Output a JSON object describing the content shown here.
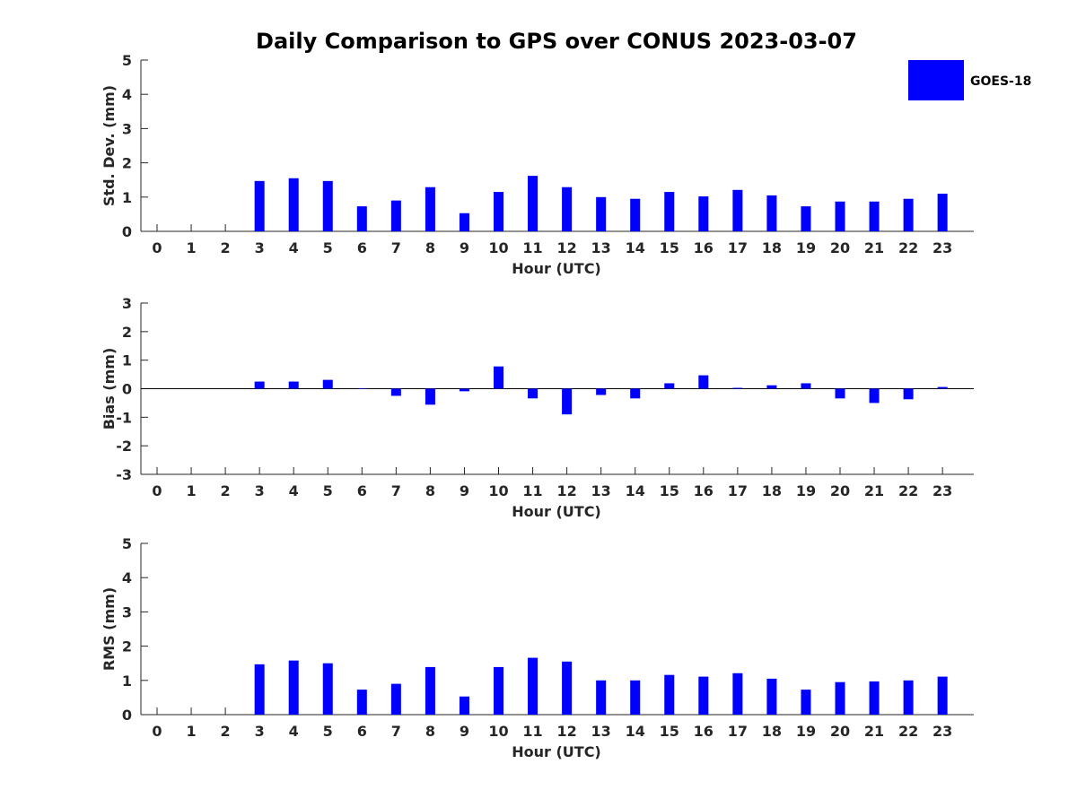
{
  "title": "Daily Comparison to GPS over CONUS 2023-03-07",
  "legend": {
    "label": "GOES-18",
    "color": "#0000ff"
  },
  "chart_data": [
    {
      "type": "bar",
      "ylabel": "Std. Dev. (mm)",
      "xlabel": "Hour (UTC)",
      "ylim": [
        0,
        5
      ],
      "yticks": [
        "0",
        "1",
        "2",
        "3",
        "4",
        "5"
      ],
      "categories": [
        "0",
        "1",
        "2",
        "3",
        "4",
        "5",
        "6",
        "7",
        "8",
        "9",
        "10",
        "11",
        "12",
        "13",
        "14",
        "15",
        "16",
        "17",
        "18",
        "19",
        "20",
        "21",
        "22",
        "23"
      ],
      "series": [
        {
          "name": "GOES-18",
          "color": "#0000ff",
          "values": [
            null,
            null,
            null,
            1.47,
            1.55,
            1.47,
            0.73,
            0.9,
            1.29,
            0.53,
            1.15,
            1.62,
            1.29,
            1.0,
            0.95,
            1.15,
            1.02,
            1.21,
            1.05,
            0.73,
            0.87,
            0.87,
            0.95,
            1.1
          ]
        }
      ],
      "legend": "top-right"
    },
    {
      "type": "bar",
      "ylabel": "Bias (mm)",
      "xlabel": "Hour (UTC)",
      "ylim": [
        -3,
        3
      ],
      "yticks": [
        "-3",
        "-2",
        "-1",
        "0",
        "1",
        "2",
        "3"
      ],
      "categories": [
        "0",
        "1",
        "2",
        "3",
        "4",
        "5",
        "6",
        "7",
        "8",
        "9",
        "10",
        "11",
        "12",
        "13",
        "14",
        "15",
        "16",
        "17",
        "18",
        "19",
        "20",
        "21",
        "22",
        "23"
      ],
      "series": [
        {
          "name": "GOES-18",
          "color": "#0000ff",
          "values": [
            null,
            null,
            null,
            0.25,
            0.25,
            0.31,
            0.0,
            -0.25,
            -0.56,
            -0.09,
            0.78,
            -0.34,
            -0.9,
            -0.22,
            -0.34,
            0.19,
            0.47,
            0.03,
            0.12,
            0.19,
            -0.34,
            -0.5,
            -0.37,
            0.06
          ]
        }
      ]
    },
    {
      "type": "bar",
      "ylabel": "RMS (mm)",
      "xlabel": "Hour (UTC)",
      "ylim": [
        0,
        5
      ],
      "yticks": [
        "0",
        "1",
        "2",
        "3",
        "4",
        "5"
      ],
      "categories": [
        "0",
        "1",
        "2",
        "3",
        "4",
        "5",
        "6",
        "7",
        "8",
        "9",
        "10",
        "11",
        "12",
        "13",
        "14",
        "15",
        "16",
        "17",
        "18",
        "19",
        "20",
        "21",
        "22",
        "23"
      ],
      "series": [
        {
          "name": "GOES-18",
          "color": "#0000ff",
          "values": [
            null,
            null,
            null,
            1.47,
            1.58,
            1.5,
            0.73,
            0.9,
            1.39,
            0.53,
            1.39,
            1.66,
            1.55,
            1.0,
            1.0,
            1.16,
            1.11,
            1.21,
            1.05,
            0.73,
            0.95,
            0.97,
            1.0,
            1.11
          ]
        }
      ]
    }
  ]
}
